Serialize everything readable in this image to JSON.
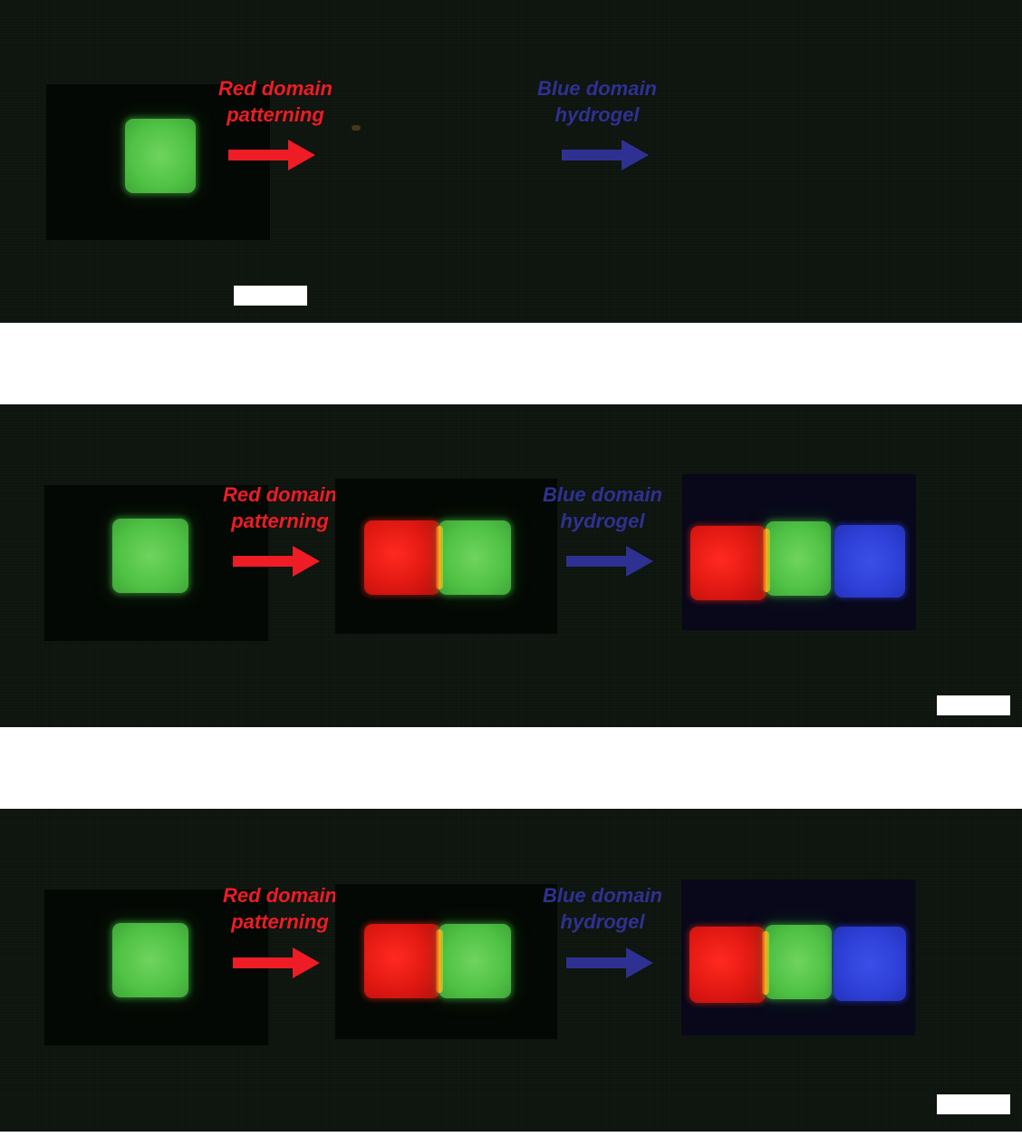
{
  "figure": {
    "panels": [
      {
        "id": "panel-1",
        "red_label_line1": "Red domain",
        "red_label_line2": "patterning",
        "blue_label_line1": "Blue domain",
        "blue_label_line2": "hydrogel"
      },
      {
        "id": "panel-2",
        "red_label_line1": "Red domain",
        "red_label_line2": "patterning",
        "blue_label_line1": "Blue domain",
        "blue_label_line2": "hydrogel"
      },
      {
        "id": "panel-3",
        "red_label_line1": "Red domain",
        "red_label_line2": "patterning",
        "blue_label_line1": "Blue domain",
        "blue_label_line2": "hydrogel"
      }
    ],
    "colors": {
      "red_label": "#ee1c25",
      "blue_label": "#2e3192",
      "panel_background": "#0d130d"
    }
  }
}
